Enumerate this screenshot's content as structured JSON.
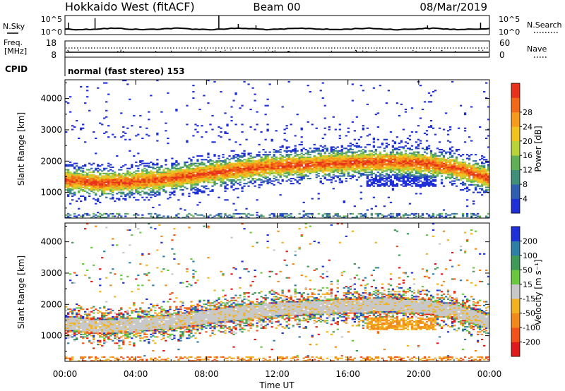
{
  "header": {
    "radar": "Hokkaido West (fitACF)",
    "beam": "Beam 00",
    "date": "08/Mar/2019"
  },
  "status_panel": {
    "nsky_label": "N.Sky",
    "nsearch_label": "N.Search",
    "noise_ticks": [
      "10^5",
      "10^0"
    ],
    "freq_label_1": "Freq.",
    "freq_label_2": "[MHz]",
    "freq_ticks": [
      "18",
      "8"
    ],
    "nave_label": "Nave",
    "nave_ticks": [
      "60",
      "0"
    ],
    "cpid_label": "CPID",
    "cpid_text": "normal (fast stereo) 153"
  },
  "time_axis": {
    "label": "Time UT",
    "ticks": [
      "00:00",
      "04:00",
      "08:00",
      "12:00",
      "16:00",
      "20:00",
      "00:00"
    ]
  },
  "chart_data": [
    {
      "type": "heatmap",
      "panel": "power",
      "ylabel": "Slant Range [km]",
      "yticks": [
        1000,
        2000,
        3000,
        4000
      ],
      "ylim": [
        180,
        4600
      ],
      "xlim_hours": [
        0,
        24
      ],
      "colorbar_label": "Power [dB]",
      "colorbar_ticks": [
        "4",
        "8",
        "12",
        "16",
        "20",
        "24",
        "28"
      ],
      "colors": [
        "#1e2fd8",
        "#2e5fb0",
        "#3f8f7a",
        "#5fb054",
        "#b8d23a",
        "#f2c21f",
        "#f59a1b",
        "#f26a17",
        "#e8321a"
      ],
      "band_center_km": [
        [
          0,
          1400
        ],
        [
          2,
          1300
        ],
        [
          4,
          1350
        ],
        [
          6,
          1450
        ],
        [
          8,
          1600
        ],
        [
          10,
          1750
        ],
        [
          12,
          1850
        ],
        [
          14,
          1900
        ],
        [
          16,
          1950
        ],
        [
          18,
          1980
        ],
        [
          20,
          1950
        ],
        [
          22,
          1800
        ],
        [
          24,
          1450
        ]
      ]
    },
    {
      "type": "heatmap",
      "panel": "velocity",
      "ylabel": "Slant Range [km]",
      "yticks": [
        1000,
        2000,
        3000,
        4000
      ],
      "ylim": [
        180,
        4600
      ],
      "xlim_hours": [
        0,
        24
      ],
      "colorbar_label": "Velocity [m s⁻¹]",
      "colorbar_ticks": [
        "200",
        "100",
        "50",
        "15",
        "-15",
        "-50",
        "-100",
        "-200"
      ],
      "colors": [
        "#1e2fd8",
        "#2e7fa8",
        "#3f9a58",
        "#6ac840",
        "#c8c8c8",
        "#f2b21f",
        "#f28a1b",
        "#f2521a",
        "#e01a1a"
      ],
      "band_center_km": [
        [
          0,
          1400
        ],
        [
          2,
          1300
        ],
        [
          4,
          1350
        ],
        [
          6,
          1450
        ],
        [
          8,
          1600
        ],
        [
          10,
          1750
        ],
        [
          12,
          1850
        ],
        [
          14,
          1900
        ],
        [
          16,
          1950
        ],
        [
          18,
          1980
        ],
        [
          20,
          1950
        ],
        [
          22,
          1800
        ],
        [
          24,
          1450
        ]
      ]
    }
  ]
}
